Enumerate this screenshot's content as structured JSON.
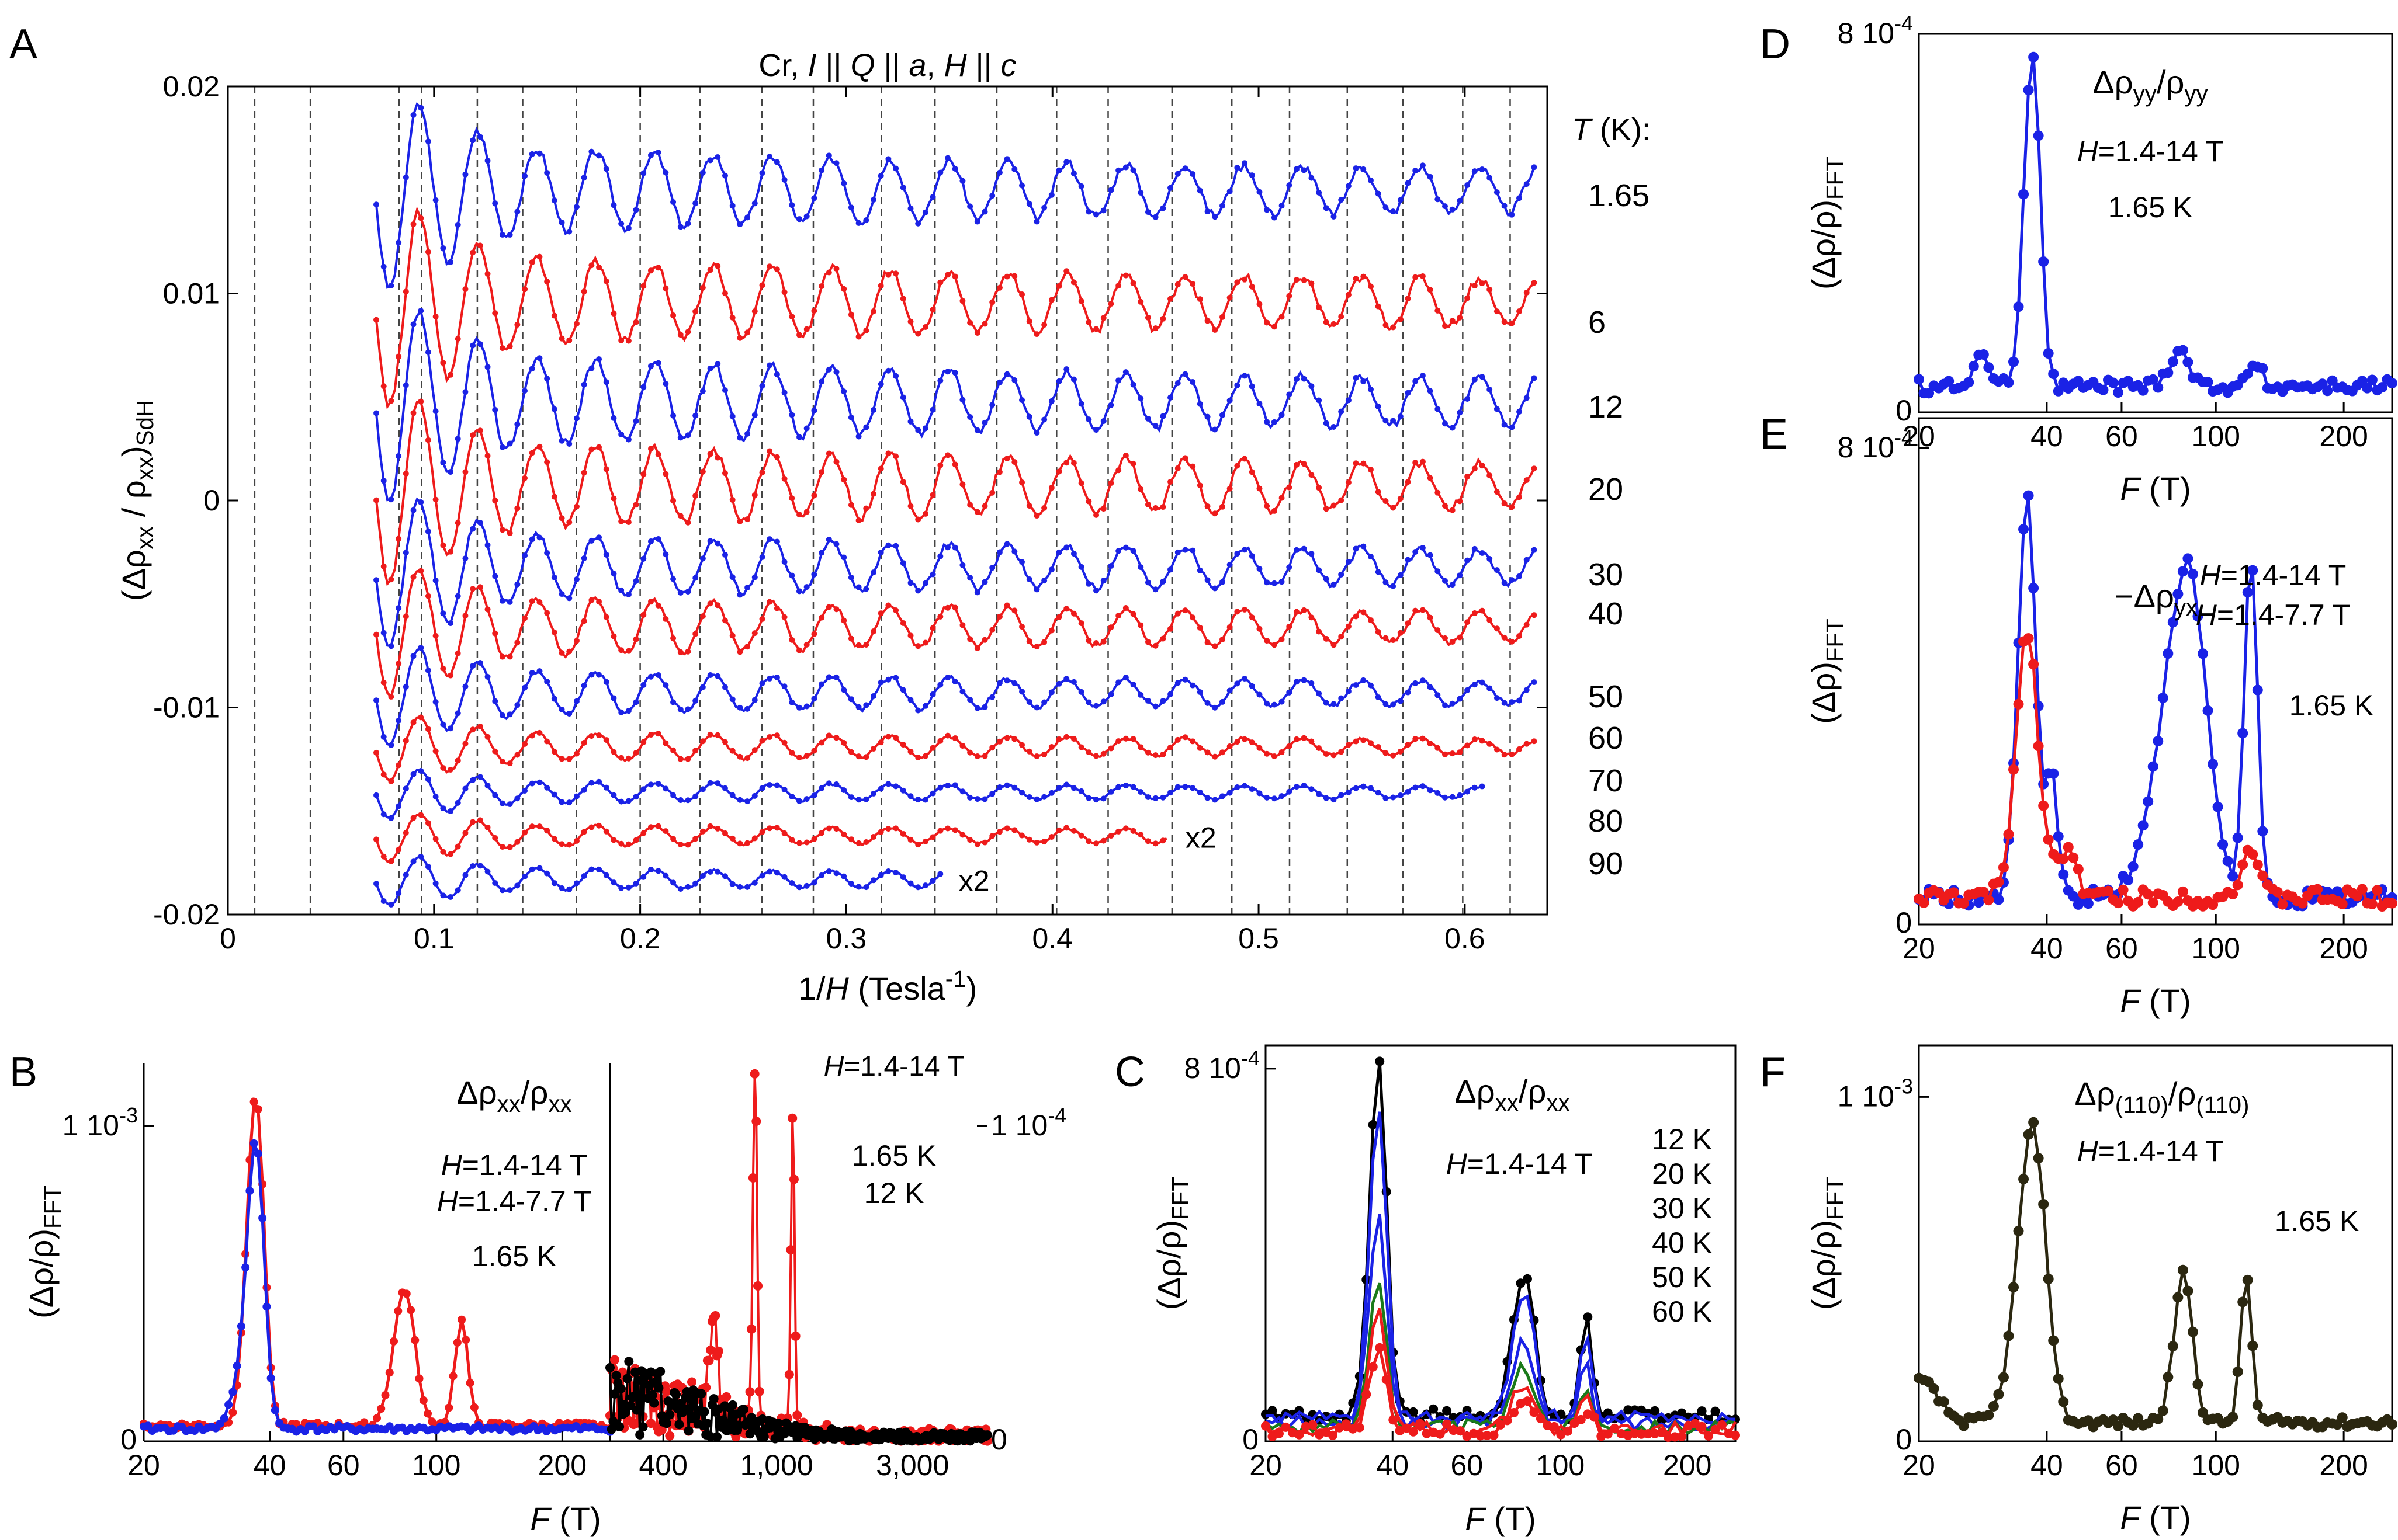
{
  "colors": {
    "blue": "#1a22e6",
    "red": "#ee1b1b",
    "green": "#1a7a1a",
    "black": "#000000",
    "olive": "#2b2710"
  },
  "chart_data": [
    {
      "id": "A",
      "type": "line",
      "panel_label": "A",
      "title": {
        "pre": "Cr, ",
        "i1": "I",
        "t1": " || ",
        "i2": "Q",
        "t2": " || ",
        "i3": "a",
        "t3": ", ",
        "i4": "H",
        "t4": " || ",
        "i5": "c"
      },
      "xlabel": {
        "pre": "1/",
        "it": "H",
        "post": " (Tesla",
        "sup": "-1",
        "end": ")"
      },
      "ylabel": {
        "pre": "(Δρ",
        "s1": "xx",
        "mid": " / ρ",
        "s2": "xx",
        "post": ")",
        "s3": "SdH"
      },
      "xlim": [
        0,
        0.64
      ],
      "ylim": [
        -0.02,
        0.02
      ],
      "xticks": [
        "0",
        "0.1",
        "0.2",
        "0.3",
        "0.4",
        "0.5",
        "0.6"
      ],
      "xtick_values": [
        0,
        0.1,
        0.2,
        0.3,
        0.4,
        0.5,
        0.6
      ],
      "yticks": [
        "-0.02",
        "-0.01",
        "0",
        "0.01",
        "0.02"
      ],
      "ytick_values": [
        -0.02,
        -0.01,
        0,
        0.01,
        0.02
      ],
      "dashed_gridlines_x": [
        0.013,
        0.04,
        0.083,
        0.094,
        0.121,
        0.143,
        0.169,
        0.2,
        0.229,
        0.259,
        0.284,
        0.317,
        0.343,
        0.373,
        0.402,
        0.427,
        0.458,
        0.487,
        0.515,
        0.543,
        0.57,
        0.599,
        0.622
      ],
      "legend_title": {
        "it": "T",
        "post": " (K):"
      },
      "series": [
        {
          "name": "1.65",
          "color": "blue",
          "offset": 0.015,
          "amp": 0.0023,
          "xmax": 0.634
        },
        {
          "name": "6",
          "color": "red",
          "offset": 0.0096,
          "amp": 0.0024,
          "xmax": 0.634
        },
        {
          "name": "12",
          "color": "blue",
          "offset": 0.0048,
          "amp": 0.0024,
          "xmax": 0.634
        },
        {
          "name": "20",
          "color": "red",
          "offset": 0.0007,
          "amp": 0.0023,
          "xmax": 0.634
        },
        {
          "name": "30",
          "color": "blue",
          "offset": -0.0032,
          "amp": 0.0018,
          "xmax": 0.634
        },
        {
          "name": "40",
          "color": "red",
          "offset": -0.0061,
          "amp": 0.0016,
          "xmax": 0.634
        },
        {
          "name": "50",
          "color": "blue",
          "offset": -0.0093,
          "amp": 0.0012,
          "xmax": 0.634
        },
        {
          "name": "60",
          "color": "red",
          "offset": -0.0119,
          "amp": 0.0008,
          "xmax": 0.634
        },
        {
          "name": "70",
          "color": "blue",
          "offset": -0.0141,
          "amp": 0.0006,
          "xmax": 0.609
        },
        {
          "name": "80",
          "color": "red",
          "offset": -0.0162,
          "amp": 0.0006,
          "xmax": 0.456,
          "mult": "x2"
        },
        {
          "name": "90",
          "color": "blue",
          "offset": -0.0183,
          "amp": 0.0006,
          "xmax": 0.346,
          "mult": "x2"
        }
      ]
    },
    {
      "id": "B",
      "type": "line",
      "panel_label": "B",
      "xlabel": {
        "it": "F",
        "post": " (T)"
      },
      "ylabel": {
        "pre": "(Δρ/ρ)",
        "sub": "FFT"
      },
      "annotation": {
        "pre": "Δρ",
        "s1": "xx",
        "mid": "/ρ",
        "s2": "xx"
      },
      "left": {
        "xlim": [
          20,
          260
        ],
        "xticks": [
          "20",
          "40",
          "60",
          "100",
          "200"
        ],
        "xtick_values": [
          20,
          40,
          60,
          100,
          200
        ],
        "yticks": [
          "0",
          "1 10",
          "-3"
        ],
        "ymax": 0.0012,
        "legend": [
          {
            "it": "H",
            "post": "=1.4-14 T",
            "color": "red"
          },
          {
            "it": "H",
            "post": "=1.4-7.7 T",
            "color": "blue"
          },
          {
            "text": "1.65 K",
            "color": "black"
          }
        ],
        "series": [
          {
            "name": "H=1.4-14 T",
            "color": "red",
            "peaks": [
              [
                37,
                0.00105,
                2.5
              ],
              [
                84,
                0.00043,
                7
              ],
              [
                115,
                0.00033,
                6
              ]
            ],
            "base": 4e-05
          },
          {
            "name": "H=1.4-7.7 T",
            "color": "blue",
            "peaks": [
              [
                37,
                0.00092,
                2.5
              ],
              [
                33,
                8e-05,
                2
              ]
            ],
            "base": 3e-05
          }
        ]
      },
      "right": {
        "xlim": [
          260,
          5500
        ],
        "xticks": [
          "400",
          "1,000",
          "3,000"
        ],
        "xtick_values": [
          400,
          1000,
          3000
        ],
        "yticks": [
          "0",
          "1 10",
          "-4"
        ],
        "ymax": 0.00012,
        "legend": [
          {
            "it": "H",
            "post": "=1.4-14 T",
            "color": "black"
          },
          {
            "text": "1.65 K",
            "color": "red"
          },
          {
            "text": "12 K",
            "color": "black"
          }
        ],
        "series": [
          {
            "name": "1.65 K",
            "color": "red",
            "peaks": [
              [
                840,
                0.000112,
                20
              ],
              [
                1140,
                9.8e-05,
                24
              ],
              [
                600,
                3e-05,
                30
              ]
            ]
          },
          {
            "name": "12 K",
            "color": "black",
            "peaks": []
          }
        ]
      }
    },
    {
      "id": "C",
      "type": "line",
      "panel_label": "C",
      "xlabel": {
        "it": "F",
        "post": " (T)"
      },
      "ylabel": {
        "pre": "(Δρ/ρ)",
        "sub": "FFT"
      },
      "annotation": {
        "pre": "Δρ",
        "s1": "xx",
        "mid": "/ρ",
        "s2": "xx"
      },
      "field": {
        "it": "H",
        "post": "=1.4-14 T"
      },
      "xlim": [
        20,
        260
      ],
      "xticks": [
        "20",
        "40",
        "60",
        "100",
        "200"
      ],
      "xtick_values": [
        20,
        40,
        60,
        100,
        200
      ],
      "yticks": [
        "0",
        "8 10",
        "-4"
      ],
      "ymax": 0.00085,
      "series": [
        {
          "name": "12 K",
          "color": "black",
          "scale": 1.0
        },
        {
          "name": "20 K",
          "color": "blue",
          "scale": 0.87
        },
        {
          "name": "30 K",
          "color": "blue",
          "scale": 0.6
        },
        {
          "name": "40 K",
          "color": "green",
          "scale": 0.42
        },
        {
          "name": "50 K",
          "color": "red",
          "scale": 0.32
        },
        {
          "name": "60 K",
          "color": "red",
          "scale": 0.22
        }
      ],
      "peaks": [
        [
          37,
          0.00077,
          2.4
        ],
        [
          82,
          0.0003,
          7
        ],
        [
          115,
          0.00022,
          5
        ]
      ]
    },
    {
      "id": "D",
      "type": "line",
      "panel_label": "D",
      "xlabel": {
        "it": "F",
        "post": " (T)"
      },
      "ylabel": {
        "pre": "(Δρ/ρ)",
        "sub": "FFT"
      },
      "annotation": {
        "pre": "Δρ",
        "s1": "yy",
        "mid": "/ρ",
        "s2": "yy"
      },
      "legend": [
        {
          "it": "H",
          "post": "=1.4-14 T",
          "color": "blue"
        },
        {
          "text": "1.65 K",
          "color": "black"
        }
      ],
      "xlim": [
        20,
        260
      ],
      "xticks": [
        "20",
        "40",
        "60",
        "100",
        "200"
      ],
      "xtick_values": [
        20,
        40,
        60,
        100,
        200
      ],
      "yticks": [
        "0",
        "8 10",
        "-4"
      ],
      "ymax": 0.0008,
      "series": [
        {
          "name": "H=1.4-14 T",
          "color": "blue",
          "peaks": [
            [
              37,
              0.00071,
              2.3
            ],
            [
              28,
              7e-05,
              1.5
            ],
            [
              82,
              8e-05,
              6
            ],
            [
              125,
              5e-05,
              6
            ]
          ],
          "base": 4e-05
        }
      ]
    },
    {
      "id": "E",
      "type": "line",
      "panel_label": "E",
      "xlabel": {
        "it": "F",
        "post": " (T)"
      },
      "ylabel": {
        "pre": "(Δρ)",
        "sub": "FFT"
      },
      "annotation": {
        "pre": "−Δρ",
        "s1": "yx"
      },
      "legend": [
        {
          "it": "H",
          "post": "=1.4-14 T",
          "color": "blue"
        },
        {
          "it": "H",
          "post": "=1.4-7.7 T",
          "color": "red"
        },
        {
          "text": "1.65 K",
          "color": "black"
        }
      ],
      "xlim": [
        20,
        260
      ],
      "xticks": [
        "20",
        "40",
        "60",
        "100",
        "200"
      ],
      "xtick_values": [
        20,
        40,
        60,
        100,
        200
      ],
      "yticks": [
        "0",
        "8 10",
        "-4"
      ],
      "ymax": 0.00085,
      "series": [
        {
          "name": "H=1.4-14 T",
          "color": "blue",
          "peaks": [
            [
              36,
              0.00068,
              2.4
            ],
            [
              41,
              0.0002,
              2
            ],
            [
              85,
              0.00056,
              14
            ],
            [
              121,
              0.00058,
              6
            ]
          ],
          "base": 3e-05
        },
        {
          "name": "H=1.4-7.7 T",
          "color": "red",
          "peaks": [
            [
              36,
              0.00045,
              3
            ],
            [
              44,
              8e-05,
              4
            ],
            [
              120,
              8e-05,
              8
            ]
          ],
          "base": 3e-05
        }
      ]
    },
    {
      "id": "F",
      "type": "line",
      "panel_label": "F",
      "xlabel": {
        "it": "F",
        "post": " (T)"
      },
      "ylabel": {
        "pre": "(Δρ/ρ)",
        "sub": "FFT"
      },
      "annotation": {
        "pre": "Δρ",
        "s1": "(110)",
        "mid": "/ρ",
        "s2": "(110)"
      },
      "legend": [
        {
          "it": "H",
          "post": "=1.4-14 T",
          "color": "olive"
        },
        {
          "text": "1.65 K",
          "color": "black"
        }
      ],
      "xlim": [
        20,
        260
      ],
      "xticks": [
        "20",
        "40",
        "60",
        "100",
        "200"
      ],
      "xtick_values": [
        20,
        40,
        60,
        100,
        200
      ],
      "yticks": [
        "0",
        "1 10",
        "-3"
      ],
      "ymax": 0.00115,
      "series": [
        {
          "name": "H=1.4-14 T",
          "color": "olive",
          "peaks": [
            [
              37,
              0.00086,
              4
            ],
            [
              84,
              0.00043,
              6
            ],
            [
              118,
              0.00043,
              5
            ],
            [
              20,
              0.00012,
              3
            ]
          ],
          "base": 4e-05
        }
      ]
    }
  ]
}
